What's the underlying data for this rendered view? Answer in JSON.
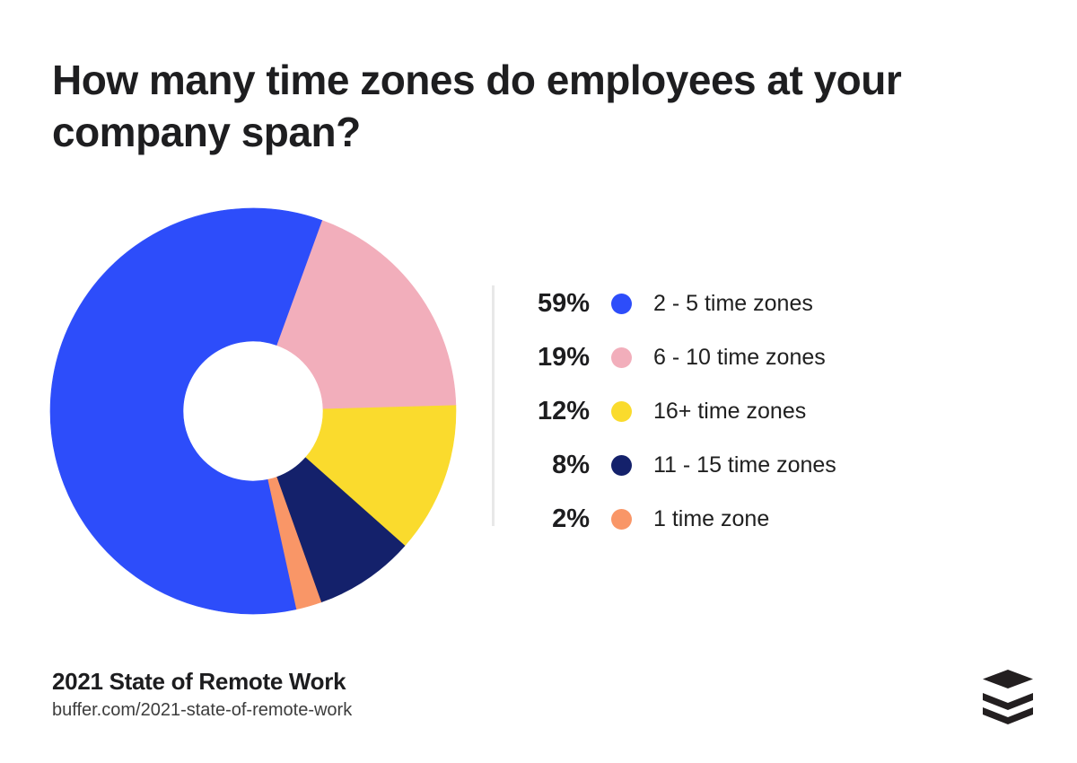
{
  "page": {
    "background": "#ffffff",
    "text_color": "#1e1e20",
    "divider_color": "#e8e8e8"
  },
  "chart_data": {
    "type": "pie",
    "donut": true,
    "title": "How many time zones do employees at your company span?",
    "legend_position": "right",
    "start_angle_deg": 167.6,
    "direction": "clockwise",
    "hole_ratio": 0.345,
    "slices": [
      {
        "label": "2 - 5 time zones",
        "value": 59,
        "percent_label": "59%",
        "color": "#2d4dfa"
      },
      {
        "label": "6 - 10 time zones",
        "value": 19,
        "percent_label": "19%",
        "color": "#f2aebb"
      },
      {
        "label": "16+ time zones",
        "value": 12,
        "percent_label": "12%",
        "color": "#fadb2d"
      },
      {
        "label": "11 - 15 time zones",
        "value": 8,
        "percent_label": "8%",
        "color": "#14216b"
      },
      {
        "label": "1 time zone",
        "value": 2,
        "percent_label": "2%",
        "color": "#f99667"
      }
    ]
  },
  "footer": {
    "source_title": "2021 State of Remote Work",
    "source_url": "buffer.com/2021-state-of-remote-work"
  },
  "logo": {
    "name": "buffer-stack-logo",
    "color": "#231f20"
  }
}
